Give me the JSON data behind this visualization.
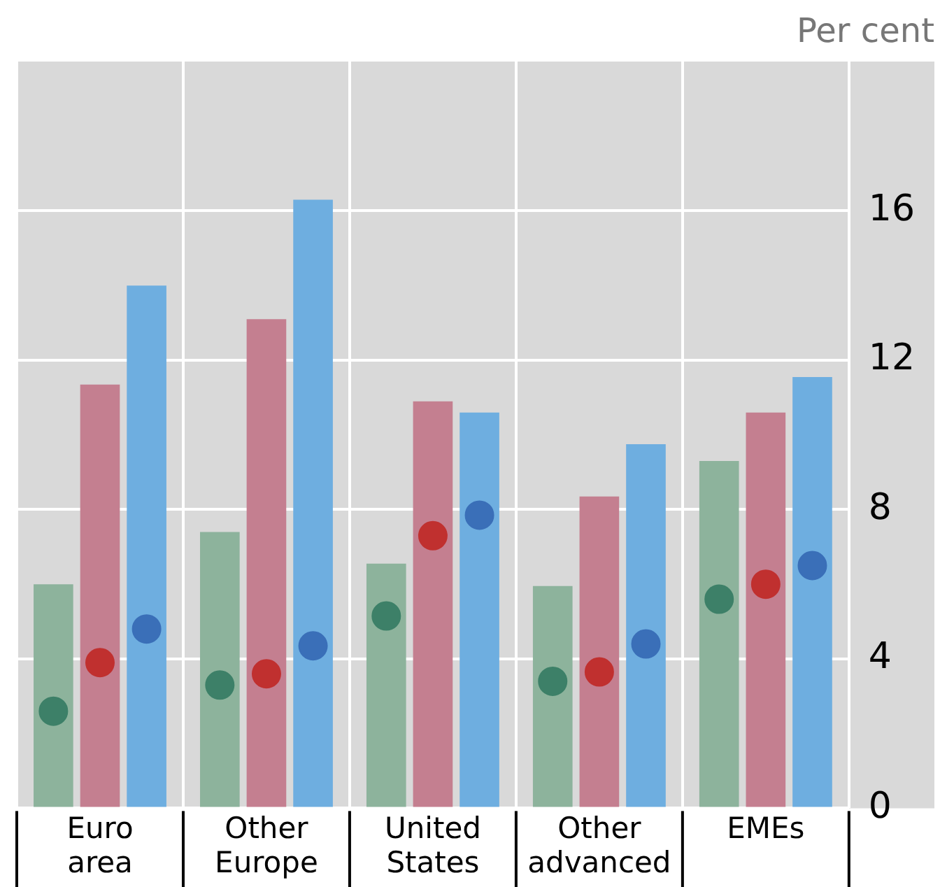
{
  "chart_data": {
    "type": "bar",
    "ylabel": "Per cent",
    "categories": [
      "Euro area",
      "Other Europe",
      "United States",
      "Other advanced",
      "EMEs"
    ],
    "series": [
      {
        "color": "#8db39c",
        "values": [
          6.0,
          7.4,
          6.55,
          5.95,
          9.3
        ]
      },
      {
        "color": "#c47f90",
        "values": [
          11.35,
          13.1,
          10.9,
          8.35,
          10.6
        ]
      },
      {
        "color": "#6eaee0",
        "values": [
          14.0,
          16.3,
          10.6,
          9.75,
          11.55
        ]
      },
      {
        "type": "scatter",
        "color": "#3d8068",
        "marker": "circle",
        "x": [
          "Euro area",
          "Other Europe",
          "United States",
          "Other advanced",
          "EMEs"
        ],
        "values": [
          2.6,
          3.3,
          5.15,
          3.4,
          5.6
        ]
      },
      {
        "type": "scatter",
        "color": "#c0302f",
        "marker": "circle",
        "x": [
          "Euro area",
          "Other Europe",
          "United States",
          "Other advanced",
          "EMEs"
        ],
        "values": [
          3.9,
          3.6,
          7.3,
          3.65,
          6.0
        ]
      },
      {
        "type": "scatter",
        "color": "#3a6fb8",
        "marker": "circle",
        "x": [
          "Euro area",
          "Other Europe",
          "United States",
          "Other advanced",
          "EMEs"
        ],
        "values": [
          4.8,
          4.35,
          7.85,
          4.4,
          6.5
        ]
      }
    ],
    "ylim": [
      0,
      20
    ],
    "yticks": [
      0,
      4,
      8,
      12,
      16
    ],
    "grid": true
  }
}
